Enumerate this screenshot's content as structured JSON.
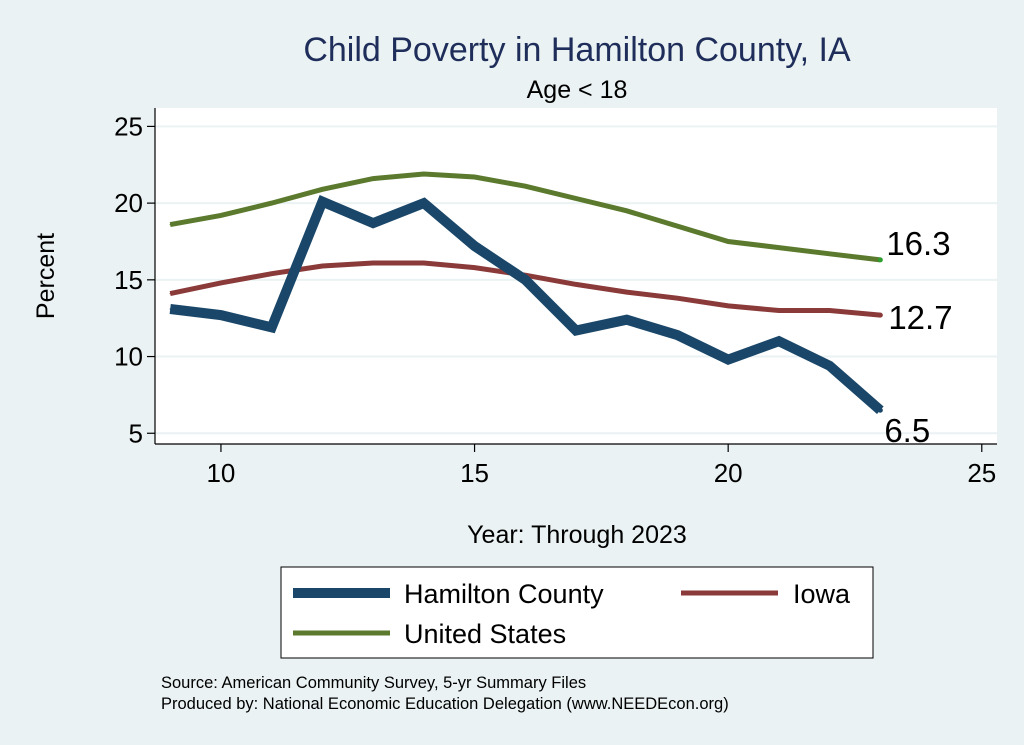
{
  "colors": {
    "background": "#eaf2f3",
    "plot_background": "#ffffff",
    "title": "#1f2d5a",
    "hamilton": "#1a4769",
    "iowa": "#8b3a3a",
    "us": "#5b7a2e",
    "grid": "#eaf2f3"
  },
  "chart_data": {
    "type": "line",
    "title": "Child Poverty in Hamilton County, IA",
    "subtitle": "Age < 18",
    "xlabel": "Year: Through 2023",
    "ylabel": "Percent",
    "xlim": [
      8.7,
      25.3
    ],
    "ylim": [
      4.3,
      26.2
    ],
    "xticks": [
      10,
      15,
      20,
      25
    ],
    "yticks": [
      5,
      10,
      15,
      20,
      25
    ],
    "grid": true,
    "legend_position": "bottom",
    "x": [
      9,
      10,
      11,
      12,
      13,
      14,
      15,
      16,
      17,
      18,
      19,
      20,
      21,
      22,
      23
    ],
    "series": [
      {
        "key": "hamilton",
        "name": "Hamilton County",
        "values": [
          13.1,
          12.7,
          11.9,
          20.1,
          18.7,
          20.0,
          17.2,
          15.0,
          11.7,
          12.4,
          11.4,
          9.8,
          11.0,
          9.4,
          6.5
        ],
        "end_label": "6.5"
      },
      {
        "key": "iowa",
        "name": "Iowa",
        "values": [
          14.1,
          14.8,
          15.4,
          15.9,
          16.1,
          16.1,
          15.8,
          15.3,
          14.7,
          14.2,
          13.8,
          13.3,
          13.0,
          13.0,
          12.7
        ],
        "end_label": "12.7"
      },
      {
        "key": "us",
        "name": "United States",
        "values": [
          18.6,
          19.2,
          20.0,
          20.9,
          21.6,
          21.9,
          21.7,
          21.1,
          20.3,
          19.5,
          18.5,
          17.5,
          17.1,
          16.7,
          16.3
        ],
        "end_label": "16.3"
      }
    ]
  },
  "source_note": "Source: American Community Survey, 5-yr Summary Files",
  "produced_note": "Produced by: National Economic Education Delegation (www.NEEDEcon.org)"
}
